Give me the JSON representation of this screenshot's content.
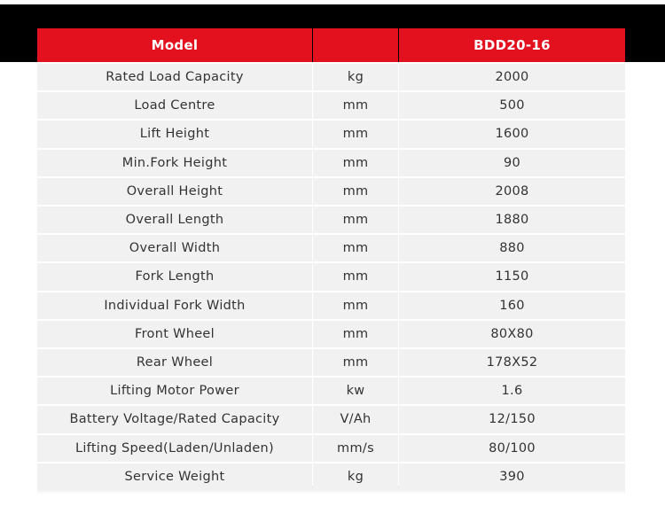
{
  "header": {
    "model": "Model",
    "name": "BDD20-16"
  },
  "rows": [
    [
      "Rated Load Capacity",
      "kg",
      "2000"
    ],
    [
      "Load Centre",
      "mm",
      "500"
    ],
    [
      "Lift Height",
      "mm",
      "1600"
    ],
    [
      "Min.Fork Height",
      "mm",
      "90"
    ],
    [
      "Overall Height",
      "mm",
      "2008"
    ],
    [
      "Overall Length",
      "mm",
      "1880"
    ],
    [
      "Overall Width",
      "mm",
      "880"
    ],
    [
      "Fork Length",
      "mm",
      "1150"
    ],
    [
      "Individual Fork Width",
      "mm",
      "160"
    ],
    [
      "Front Wheel",
      "mm",
      "80X80"
    ],
    [
      "Rear Wheel",
      "mm",
      "178X52"
    ],
    [
      "Lifting Motor Power",
      "kw",
      "1.6"
    ],
    [
      "Battery Voltage/Rated Capacity",
      "V/Ah",
      "12/150"
    ],
    [
      "Lifting Speed(Laden/Unladen)",
      "mm/s",
      "80/100"
    ],
    [
      "Service Weight",
      "kg",
      "390"
    ]
  ]
}
